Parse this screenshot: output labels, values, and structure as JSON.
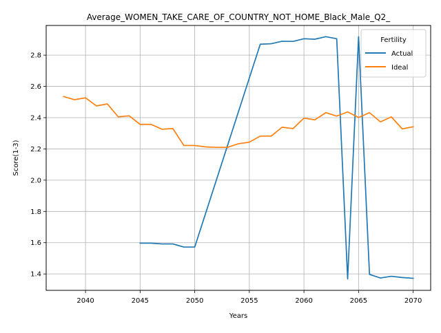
{
  "chart_data": {
    "type": "line",
    "title": "Average_WOMEN_TAKE_CARE_OF_COUNTRY_NOT_HOME_Black_Male_Q2_",
    "xlabel": "Years",
    "ylabel": "Score(1-3)",
    "xlim": [
      2036.4,
      2071.6
    ],
    "ylim": [
      1.295,
      2.99
    ],
    "x_ticks": [
      2040,
      2045,
      2050,
      2055,
      2060,
      2065,
      2070
    ],
    "x_tick_labels": [
      "2040",
      "2045",
      "2050",
      "2055",
      "2060",
      "2065",
      "2070"
    ],
    "y_ticks": [
      1.4,
      1.6,
      1.8,
      2.0,
      2.2,
      2.4,
      2.6,
      2.8
    ],
    "y_tick_labels": [
      "1.4",
      "1.6",
      "1.8",
      "2.0",
      "2.2",
      "2.4",
      "2.6",
      "2.8"
    ],
    "grid": true,
    "legend": {
      "title": "Fertility",
      "placement": "top-right"
    },
    "series": [
      {
        "name": "Actual",
        "color": "#1f77b4",
        "points": [
          [
            2045,
            1.597
          ],
          [
            2046,
            1.597
          ],
          [
            2047,
            1.592
          ],
          [
            2048,
            1.592
          ],
          [
            2049,
            1.572
          ],
          [
            2050,
            1.572
          ],
          [
            2056,
            2.87
          ],
          [
            2057,
            2.873
          ],
          [
            2058,
            2.889
          ],
          [
            2059,
            2.888
          ],
          [
            2060,
            2.905
          ],
          [
            2061,
            2.902
          ],
          [
            2062,
            2.918
          ],
          [
            2063,
            2.905
          ],
          [
            2064,
            1.368
          ],
          [
            2065,
            2.918
          ],
          [
            2066,
            1.397
          ],
          [
            2067,
            1.374
          ],
          [
            2068,
            1.385
          ],
          [
            2069,
            1.377
          ],
          [
            2070,
            1.372
          ]
        ]
      },
      {
        "name": "Ideal",
        "color": "#ff7f0e",
        "points": [
          [
            2038,
            2.535
          ],
          [
            2039,
            2.515
          ],
          [
            2040,
            2.527
          ],
          [
            2041,
            2.475
          ],
          [
            2042,
            2.488
          ],
          [
            2043,
            2.405
          ],
          [
            2044,
            2.412
          ],
          [
            2045,
            2.357
          ],
          [
            2046,
            2.357
          ],
          [
            2047,
            2.326
          ],
          [
            2048,
            2.33
          ],
          [
            2049,
            2.222
          ],
          [
            2050,
            2.222
          ],
          [
            2051,
            2.213
          ],
          [
            2052,
            2.21
          ],
          [
            2053,
            2.21
          ],
          [
            2054,
            2.233
          ],
          [
            2055,
            2.243
          ],
          [
            2056,
            2.282
          ],
          [
            2057,
            2.282
          ],
          [
            2058,
            2.339
          ],
          [
            2059,
            2.33
          ],
          [
            2060,
            2.397
          ],
          [
            2061,
            2.386
          ],
          [
            2062,
            2.432
          ],
          [
            2063,
            2.41
          ],
          [
            2064,
            2.437
          ],
          [
            2065,
            2.401
          ],
          [
            2066,
            2.432
          ],
          [
            2067,
            2.373
          ],
          [
            2068,
            2.405
          ],
          [
            2069,
            2.328
          ],
          [
            2070,
            2.342
          ]
        ]
      }
    ]
  }
}
